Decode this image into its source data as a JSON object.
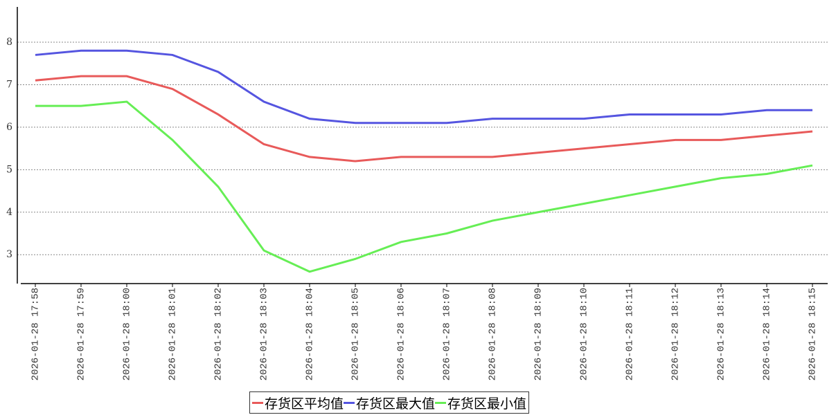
{
  "chart_data": {
    "type": "line",
    "categories": [
      "2026-01-28 17:58",
      "2026-01-28 17:59",
      "2026-01-28 18:00",
      "2026-01-28 18:01",
      "2026-01-28 18:02",
      "2026-01-28 18:03",
      "2026-01-28 18:04",
      "2026-01-28 18:05",
      "2026-01-28 18:06",
      "2026-01-28 18:07",
      "2026-01-28 18:08",
      "2026-01-28 18:09",
      "2026-01-28 18:10",
      "2026-01-28 18:11",
      "2026-01-28 18:12",
      "2026-01-28 18:13",
      "2026-01-28 18:14",
      "2026-01-28 18:15"
    ],
    "series": [
      {
        "name": "存货区平均值",
        "color": "#e85a5a",
        "values": [
          7.1,
          7.2,
          7.2,
          6.9,
          6.3,
          5.6,
          5.3,
          5.2,
          5.3,
          5.3,
          5.3,
          5.4,
          5.5,
          5.6,
          5.7,
          5.7,
          5.8,
          5.9
        ]
      },
      {
        "name": "存货区最大值",
        "color": "#5555e0",
        "values": [
          7.7,
          7.8,
          7.8,
          7.7,
          7.3,
          6.6,
          6.2,
          6.1,
          6.1,
          6.1,
          6.2,
          6.2,
          6.2,
          6.3,
          6.3,
          6.3,
          6.4,
          6.4
        ]
      },
      {
        "name": "存货区最小值",
        "color": "#66ee55",
        "values": [
          6.5,
          6.5,
          6.6,
          5.7,
          4.6,
          3.1,
          2.6,
          2.9,
          3.3,
          3.5,
          3.8,
          4.0,
          4.2,
          4.4,
          4.6,
          4.8,
          4.9,
          5.1
        ]
      }
    ],
    "ylim": [
      2.32,
      8.83
    ],
    "yticks": [
      3,
      4,
      5,
      6,
      7,
      8
    ],
    "grid": true,
    "legend": "bottom"
  }
}
